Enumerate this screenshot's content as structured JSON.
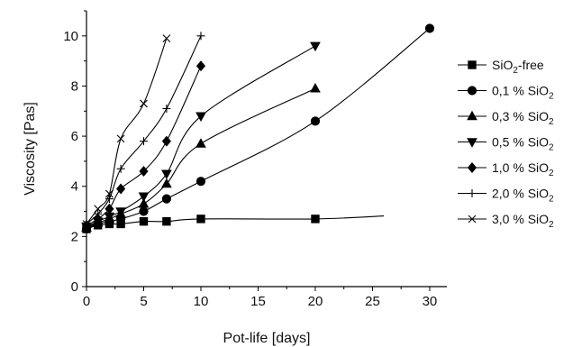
{
  "chart_data": {
    "type": "line",
    "xlabel": "Pot-life [days]",
    "ylabel": "Viscosity [Pas]",
    "xlim": [
      0,
      31.5
    ],
    "ylim": [
      0,
      11
    ],
    "xticks": [
      0,
      5,
      10,
      15,
      20,
      25,
      30
    ],
    "yticks": [
      0,
      2,
      4,
      6,
      8,
      10
    ],
    "legend_position": "right",
    "series": [
      {
        "name": "SiO",
        "sub": "2",
        "suffix": "-free",
        "marker": "square",
        "x": [
          0,
          1,
          2,
          3,
          5,
          7,
          10,
          20
        ],
        "y": [
          2.3,
          2.45,
          2.5,
          2.5,
          2.6,
          2.6,
          2.7,
          2.7
        ],
        "curve_end": [
          26,
          2.82
        ]
      },
      {
        "name": "0,1 % SiO",
        "sub": "2",
        "suffix": "",
        "marker": "circle",
        "x": [
          0,
          1,
          2,
          3,
          5,
          7,
          10,
          20,
          30
        ],
        "y": [
          2.3,
          2.5,
          2.6,
          2.7,
          3.0,
          3.5,
          4.2,
          6.6,
          10.3
        ]
      },
      {
        "name": "0,3 % SiO",
        "sub": "2",
        "suffix": "",
        "marker": "triangle-up",
        "x": [
          0,
          1,
          2,
          3,
          5,
          7,
          10,
          20
        ],
        "y": [
          2.35,
          2.55,
          2.7,
          2.9,
          3.3,
          4.1,
          5.7,
          7.9
        ]
      },
      {
        "name": "0,5 % SiO",
        "sub": "2",
        "suffix": "",
        "marker": "triangle-down",
        "x": [
          0,
          1,
          2,
          3,
          5,
          7,
          10,
          20
        ],
        "y": [
          2.4,
          2.6,
          2.8,
          3.0,
          3.6,
          4.5,
          6.8,
          9.6
        ]
      },
      {
        "name": "1,0 % SiO",
        "sub": "2",
        "suffix": "",
        "marker": "diamond",
        "x": [
          0,
          1,
          2,
          3,
          5,
          7,
          10
        ],
        "y": [
          2.45,
          2.7,
          3.1,
          3.9,
          4.6,
          5.8,
          8.8
        ]
      },
      {
        "name": "2,0 % SiO",
        "sub": "2",
        "suffix": "",
        "marker": "plus",
        "x": [
          0,
          1,
          2,
          3,
          5,
          7,
          10
        ],
        "y": [
          2.5,
          2.9,
          3.5,
          4.7,
          5.8,
          7.1,
          10.0
        ]
      },
      {
        "name": "3,0 % SiO",
        "sub": "2",
        "suffix": "",
        "marker": "cross",
        "x": [
          0,
          1,
          2,
          3,
          5,
          7
        ],
        "y": [
          2.5,
          3.1,
          3.7,
          5.9,
          7.3,
          9.9
        ]
      }
    ]
  }
}
